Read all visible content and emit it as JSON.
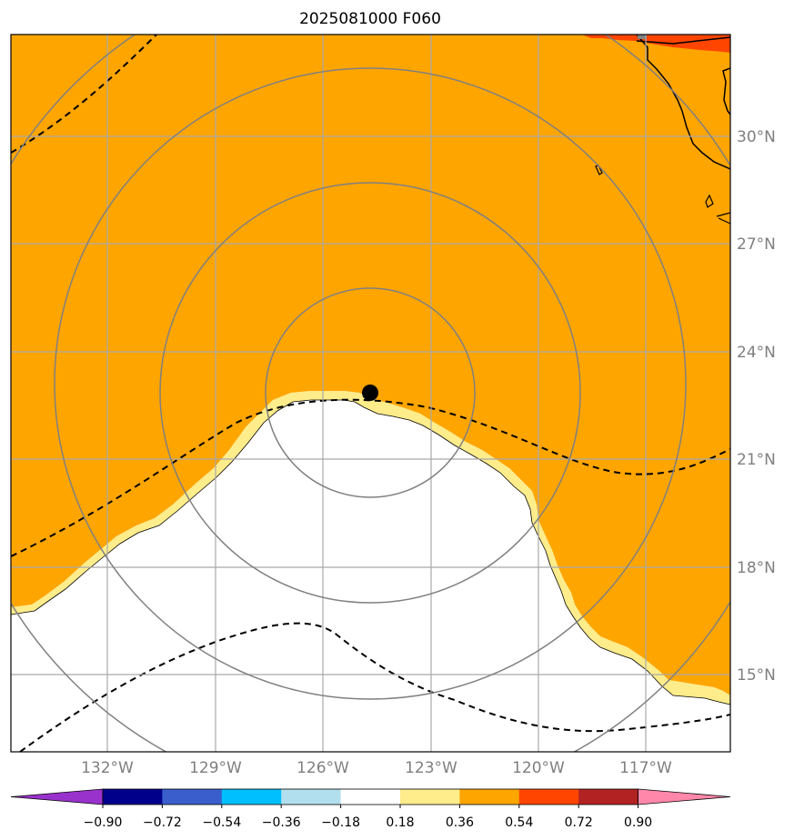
{
  "title": "2025081000 F060",
  "map": {
    "lon_range": [
      -135,
      -115
    ],
    "lat_range": [
      13,
      33
    ],
    "lon_labels": [
      "132°W",
      "129°W",
      "126°W",
      "123°W",
      "120°W",
      "117°W"
    ],
    "lat_labels": [
      "15°N",
      "18°N",
      "21°N",
      "24°N",
      "27°N",
      "30°N"
    ],
    "storm_center": {
      "lon": -124.8,
      "lat": 22.8
    },
    "range_rings_km": [
      300,
      600,
      900,
      1200
    ],
    "colors": {
      "field_main": "#ffa500",
      "field_edge": "#ffec8b",
      "field_high": "#ff4500",
      "background": "#ffffff",
      "grid": "#a9a9a9",
      "rings": "#808080",
      "coast": "#000000",
      "contour": "#000000"
    }
  },
  "colorbar": {
    "labels": [
      "−0.90",
      "−0.72",
      "−0.54",
      "−0.36",
      "−0.18",
      "0.18",
      "0.36",
      "0.54",
      "0.72",
      "0.90"
    ],
    "colors": [
      "#9932cc",
      "#00008b",
      "#3a5fcd",
      "#00bfff",
      "#b2dfee",
      "#ffffff",
      "#ffec8b",
      "#ffa500",
      "#ff4500",
      "#b22222",
      "#ff88aa"
    ]
  }
}
